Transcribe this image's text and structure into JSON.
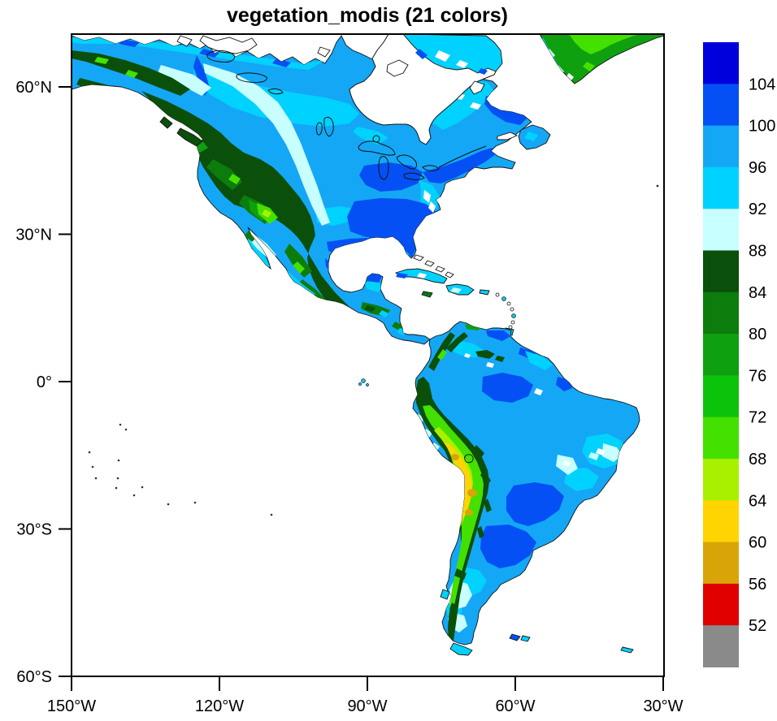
{
  "title": "vegetation_modis (21 colors)",
  "axes": {
    "y_ticks": [
      "60°N",
      "30°N",
      "0°",
      "30°S",
      "60°S"
    ],
    "x_ticks": [
      "150°W",
      "120°W",
      "90°W",
      "60°W",
      "30°W"
    ]
  },
  "colorbar": {
    "labels": [
      "104",
      "100",
      "96",
      "92",
      "88",
      "84",
      "80",
      "76",
      "72",
      "68",
      "64",
      "60",
      "56",
      "52"
    ],
    "colors_top_to_bottom": [
      "#0000DC",
      "#0450F4",
      "#14A7F6",
      "#00D2FF",
      "#C8FFFF",
      "#0A4F0A",
      "#0C7C0C",
      "#0FA00F",
      "#0CC30C",
      "#44E000",
      "#A9F000",
      "#FFD400",
      "#D9A408",
      "#E10000",
      "#8A8A8A"
    ]
  },
  "chart_data": {
    "type": "heatmap",
    "subtype": "filled_contour_map",
    "title": "vegetation_modis (21 colors)",
    "variable": "vegetation_modis",
    "region": "North and South America",
    "projection": "cylindrical equidistant",
    "lon_range_deg_west": [
      150,
      30
    ],
    "lat_range_deg": [
      -60,
      71
    ],
    "x_tick_labels": [
      "150°W",
      "120°W",
      "90°W",
      "60°W",
      "30°W"
    ],
    "y_tick_labels": [
      "60°N",
      "30°N",
      "0°",
      "30°S",
      "60°S"
    ],
    "contour_levels": [
      52,
      56,
      60,
      64,
      68,
      72,
      76,
      80,
      84,
      88,
      92,
      96,
      100,
      104
    ],
    "level_colors": [
      {
        "range": "> 104",
        "hex": "#0000DC"
      },
      {
        "range": "100–104",
        "hex": "#0450F4"
      },
      {
        "range": "96–100",
        "hex": "#14A7F6"
      },
      {
        "range": "92–96",
        "hex": "#00D2FF"
      },
      {
        "range": "88–92",
        "hex": "#C8FFFF"
      },
      {
        "range": "84–88",
        "hex": "#0A4F0A"
      },
      {
        "range": "80–84",
        "hex": "#0C7C0C"
      },
      {
        "range": "76–80",
        "hex": "#0FA00F"
      },
      {
        "range": "72–76",
        "hex": "#0CC30C"
      },
      {
        "range": "68–72",
        "hex": "#44E000"
      },
      {
        "range": "64–68",
        "hex": "#A9F000"
      },
      {
        "range": "60–64",
        "hex": "#FFD400"
      },
      {
        "range": "56–60",
        "hex": "#D9A408"
      },
      {
        "range": "52–56",
        "hex": "#E10000"
      },
      {
        "range": "< 52",
        "hex": "#8A8A8A"
      }
    ],
    "legend_position": "right vertical labelbar",
    "value_regions_read_from_map": [
      "Western North America mountains (Alaska–BC–Rockies–Sierra Madre): 72–88 (greens)",
      "Brightest green spot over Colorado Plateau: 64–72",
      "Central and eastern North America: 96–104 (blues), darkest blues over southeastern US and around Hudson Bay",
      "Canadian prairies / NWT / Quebec interior: 92–96 (cyan)",
      "Band along east flank of Rockies and Appalachians: 88–92 (pale cyan)",
      "Greenland: 68–88 (greens)",
      "Amazon basin and eastern South America: 96–104 (blues)",
      "Andes cordillera: 68–88 (greens)",
      "Bolivian/Peruvian Altiplano core: 52–68 (gold and yellow-green, small 56–60 patches)",
      "Patagonia: 88–96 (pale cyan / cyan)",
      "Oceans and large water bodies: no data (white, coastlines and lakes outlined)"
    ]
  }
}
